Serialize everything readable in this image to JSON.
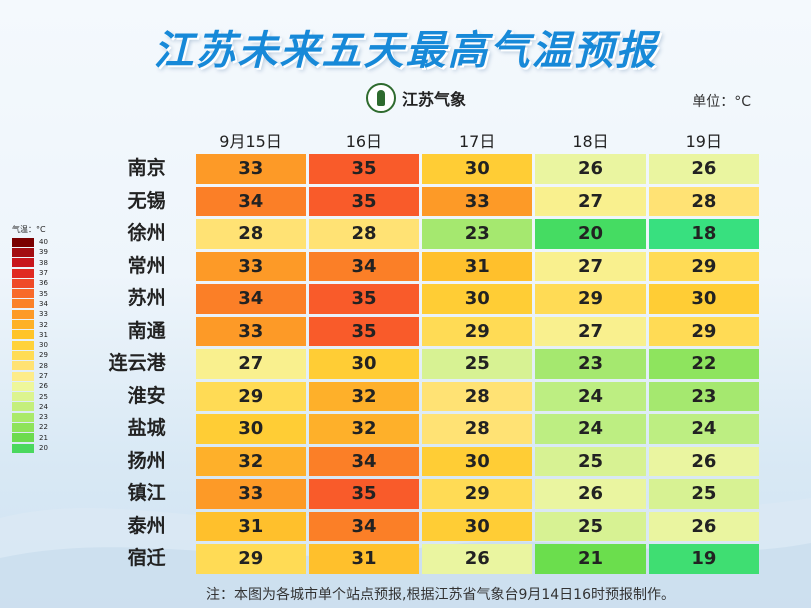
{
  "title": "江苏未来五天最高气温预报",
  "logo_text": "江苏气象",
  "unit": "单位：°C",
  "dates": [
    "9月15日",
    "16日",
    "17日",
    "18日",
    "19日"
  ],
  "cities": [
    "南京",
    "无锡",
    "徐州",
    "常州",
    "苏州",
    "南通",
    "连云港",
    "淮安",
    "盐城",
    "扬州",
    "镇江",
    "泰州",
    "宿迁"
  ],
  "values": [
    [
      33,
      35,
      30,
      26,
      26
    ],
    [
      34,
      35,
      33,
      27,
      28
    ],
    [
      28,
      28,
      23,
      20,
      18
    ],
    [
      33,
      34,
      31,
      27,
      29
    ],
    [
      34,
      35,
      30,
      29,
      30
    ],
    [
      33,
      35,
      29,
      27,
      29
    ],
    [
      27,
      30,
      25,
      23,
      22
    ],
    [
      29,
      32,
      28,
      24,
      23
    ],
    [
      30,
      32,
      28,
      24,
      24
    ],
    [
      32,
      34,
      30,
      25,
      26
    ],
    [
      33,
      35,
      29,
      26,
      25
    ],
    [
      31,
      34,
      30,
      25,
      26
    ],
    [
      29,
      31,
      26,
      21,
      19
    ]
  ],
  "legend": {
    "title": "气温：°C",
    "items": [
      {
        "label": "40",
        "color": "#7a0000"
      },
      {
        "label": "39",
        "color": "#a30d12"
      },
      {
        "label": "38",
        "color": "#c8161d"
      },
      {
        "label": "37",
        "color": "#e02a22"
      },
      {
        "label": "36",
        "color": "#ef4a28"
      },
      {
        "label": "35",
        "color": "#f86a2a"
      },
      {
        "label": "34",
        "color": "#fb8128"
      },
      {
        "label": "33",
        "color": "#fd9a27"
      },
      {
        "label": "32",
        "color": "#feb126"
      },
      {
        "label": "31",
        "color": "#ffc428"
      },
      {
        "label": "30",
        "color": "#ffd23a"
      },
      {
        "label": "29",
        "color": "#ffdc55"
      },
      {
        "label": "28",
        "color": "#ffe273"
      },
      {
        "label": "27",
        "color": "#fdec8a"
      },
      {
        "label": "26",
        "color": "#eef79b"
      },
      {
        "label": "25",
        "color": "#dcf48f"
      },
      {
        "label": "24",
        "color": "#c4ef7c"
      },
      {
        "label": "23",
        "color": "#aaea6a"
      },
      {
        "label": "22",
        "color": "#8ee35a"
      },
      {
        "label": "21",
        "color": "#6cdb4e"
      },
      {
        "label": "20",
        "color": "#4ad85e"
      }
    ]
  },
  "cell_colors": {
    "35": "#f95b2a",
    "34": "#fb7f27",
    "33": "#fd9a27",
    "32": "#feb02a",
    "31": "#ffc02c",
    "30": "#ffcd35",
    "29": "#ffdb55",
    "28": "#ffe274",
    "27": "#f9f08e",
    "26": "#eaf5a0",
    "25": "#d7f293",
    "24": "#bdee82",
    "23": "#a5e86f",
    "22": "#8ee45e",
    "21": "#6bde4d",
    "20": "#45dc62",
    "19": "#3fde72",
    "18": "#38e07f"
  },
  "note": "注：本图为各城市单个站点预报,根据江苏省气象台9月14日16时预报制作。"
}
